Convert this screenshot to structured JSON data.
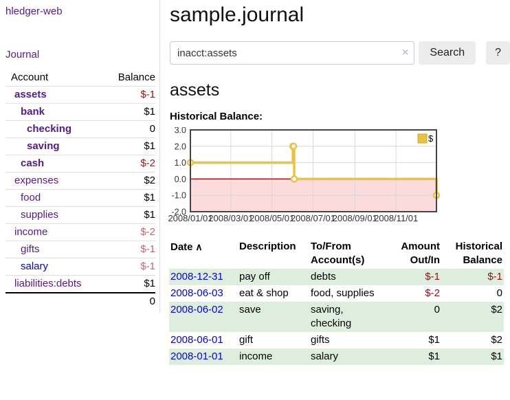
{
  "sidebar": {
    "app_title": "hledger-web",
    "journal_label": "Journal",
    "accounts_table": {
      "account_header": "Account",
      "balance_header": "Balance",
      "rows": [
        {
          "name": "assets",
          "balance": "$-1",
          "level": 1,
          "bold": true,
          "name_color": "purple",
          "balance_class": "neg"
        },
        {
          "name": "bank",
          "balance": "$1",
          "level": 2,
          "bold": true,
          "name_color": "purple",
          "balance_class": "pos"
        },
        {
          "name": "checking",
          "balance": "0",
          "level": 3,
          "bold": true,
          "name_color": "purple",
          "balance_class": "pos"
        },
        {
          "name": "saving",
          "balance": "$1",
          "level": 3,
          "bold": true,
          "name_color": "purple",
          "balance_class": "pos"
        },
        {
          "name": "cash",
          "balance": "$-2",
          "level": 2,
          "bold": true,
          "name_color": "purple",
          "balance_class": "neg"
        },
        {
          "name": "expenses",
          "balance": "$2",
          "level": 1,
          "bold": false,
          "name_color": "purple",
          "balance_class": "pos"
        },
        {
          "name": "food",
          "balance": "$1",
          "level": 2,
          "bold": false,
          "name_color": "purple",
          "balance_class": "pos"
        },
        {
          "name": "supplies",
          "balance": "$1",
          "level": 2,
          "bold": false,
          "name_color": "purple",
          "balance_class": "pos"
        },
        {
          "name": "income",
          "balance": "$-2",
          "level": 1,
          "bold": false,
          "name_color": "purple",
          "balance_class": "neg-light"
        },
        {
          "name": "gifts",
          "balance": "$-1",
          "level": 2,
          "bold": false,
          "name_color": "purple",
          "balance_class": "neg-light"
        },
        {
          "name": "salary",
          "balance": "$-1",
          "level": 2,
          "bold": false,
          "name_color": "blue",
          "balance_class": "neg-light"
        },
        {
          "name": "liabilities:debts",
          "balance": "$1",
          "level": 1,
          "bold": false,
          "name_color": "purple",
          "balance_class": "pos"
        }
      ],
      "total": "0"
    }
  },
  "main": {
    "title": "sample.journal",
    "search": {
      "value": "inacct:assets",
      "clear_icon": "×",
      "button_label": "Search",
      "help_label": "?"
    },
    "section_title": "assets",
    "chart_label": "Historical Balance:"
  },
  "chart_data": {
    "type": "line",
    "step": true,
    "title": "Historical Balance:",
    "series": [
      {
        "name": "$",
        "color": "#EDC240",
        "points": [
          [
            "2008-01-01",
            1
          ],
          [
            "2008-06-01",
            2
          ],
          [
            "2008-06-02",
            2
          ],
          [
            "2008-06-03",
            0
          ],
          [
            "2008-12-31",
            -1
          ]
        ]
      }
    ],
    "xlim": [
      "2008-01-01",
      "2008-12-31"
    ],
    "ylim": [
      -2,
      3
    ],
    "y_ticks": [
      {
        "v": 3,
        "label": "3.0"
      },
      {
        "v": 2,
        "label": "2.0"
      },
      {
        "v": 1,
        "label": "1.0"
      },
      {
        "v": 0,
        "label": "0.0"
      },
      {
        "v": -1,
        "label": "-1.0"
      },
      {
        "v": -2,
        "label": "-2.0"
      }
    ],
    "x_ticks": [
      {
        "date": "2008-01-01",
        "label": "2008/01/01"
      },
      {
        "date": "2008-03-01",
        "label": "2008/03/01"
      },
      {
        "date": "2008-05-01",
        "label": "2008/05/01"
      },
      {
        "date": "2008-07-01",
        "label": "2008/07/01"
      },
      {
        "date": "2008-09-01",
        "label": "2008/09/01"
      },
      {
        "date": "2008-11-01",
        "label": "2008/11/01"
      }
    ],
    "legend": {
      "label": "$",
      "position": "top-right"
    },
    "grid": true,
    "negative_region_fill": "#FBDBDB",
    "zero_line_color": "#9E1111",
    "grid_color": "#D8D8D8",
    "border_color": "#444444"
  },
  "register": {
    "headers": [
      {
        "line1": "Date",
        "sort_icon": "∧",
        "align": "left"
      },
      {
        "line1": "Description",
        "align": "left"
      },
      {
        "line1": "To/From",
        "line2": "Account(s)",
        "align": "left"
      },
      {
        "line1": "Amount",
        "line2": "Out/In",
        "align": "right"
      },
      {
        "line1": "Historical",
        "line2": "Balance",
        "align": "right"
      }
    ],
    "rows": [
      {
        "date": "2008-12-31",
        "description": "pay off",
        "accounts": "debts",
        "amount": "$-1",
        "amount_negative": true,
        "balance": "$-1",
        "balance_negative": true,
        "stripe": true
      },
      {
        "date": "2008-06-03",
        "description": "eat & shop",
        "accounts": "food, supplies",
        "amount": "$-2",
        "amount_negative": true,
        "balance": "0",
        "balance_negative": false,
        "stripe": false
      },
      {
        "date": "2008-06-02",
        "description": "save",
        "accounts": "saving, checking",
        "amount": "0",
        "amount_negative": false,
        "balance": "$2",
        "balance_negative": false,
        "stripe": true
      },
      {
        "date": "2008-06-01",
        "description": "gift",
        "accounts": "gifts",
        "amount": "$1",
        "amount_negative": false,
        "balance": "$2",
        "balance_negative": false,
        "stripe": false
      },
      {
        "date": "2008-01-01",
        "description": "income",
        "accounts": "salary",
        "amount": "$1",
        "amount_negative": false,
        "balance": "$1",
        "balance_negative": false,
        "stripe": true
      }
    ]
  },
  "colors": {
    "link_purple": "#551A8B",
    "link_blue": "#0000EE",
    "negative_bold": "#9D1414",
    "negative_light": "#C06A6A",
    "negative_table": "#8E1212",
    "stripe_green": "#DEEEDE",
    "chart_gold": "#EDC240",
    "chart_negative_fill": "#FBDBDB",
    "chart_zero_line": "#9E1111"
  }
}
